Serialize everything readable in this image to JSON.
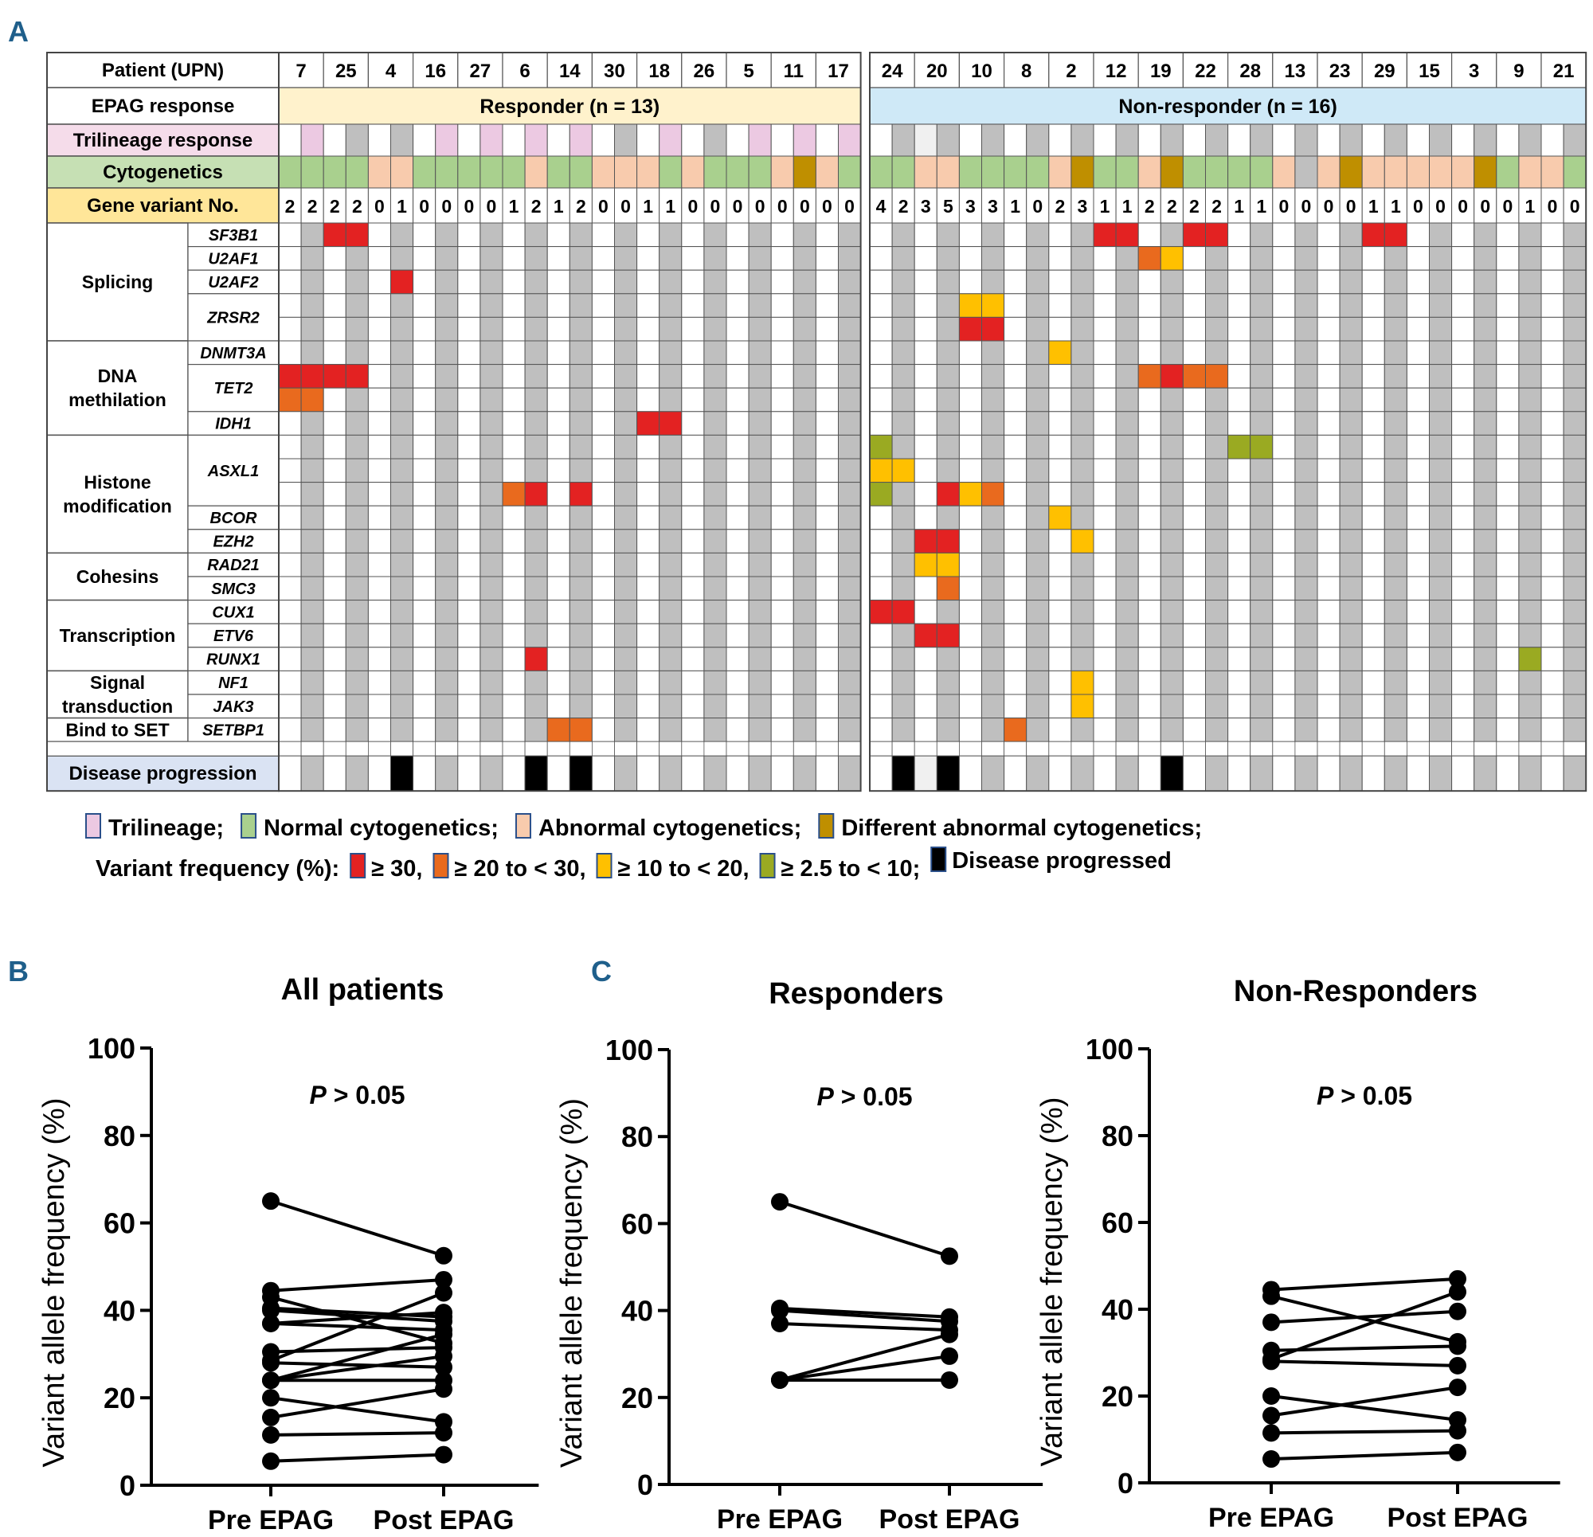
{
  "panels": {
    "a": "A",
    "b": "B",
    "c": "C"
  },
  "colors": {
    "white": "#ffffff",
    "post_gray": "#bfbfbf",
    "light_gray": "#f0f0f0",
    "trilineage": "#ecc9e2",
    "normal_cyto": "#a9d08e",
    "abnormal_cyto": "#f8cbad",
    "diff_abnormal_cyto": "#bf8f00",
    "vaf_ge30": "#e32222",
    "vaf_20_30": "#e96a1e",
    "vaf_10_20": "#ffc000",
    "vaf_2_5_10": "#9aaa22",
    "progressed": "#000000",
    "label_trilineage": "#f5dcea",
    "label_cyto": "#c6e0b4",
    "label_gene_no": "#ffe699",
    "label_disease": "#dae3f3",
    "responder_band": "#fff2cc",
    "nonresponder_band": "#cfe9f7",
    "panel_letter": "#1f5f8b"
  },
  "heatmap": {
    "row_labels": {
      "patient": "Patient (UPN)",
      "epag": "EPAG response",
      "trilineage": "Trilineage response",
      "cyto": "Cytogenetics",
      "gene_no": "Gene variant No.",
      "disease": "Disease progression"
    },
    "groups": [
      {
        "key": "responder",
        "label": "Responder (n = 13)",
        "patients": [
          "7",
          "25",
          "4",
          "16",
          "27",
          "6",
          "14",
          "30",
          "18",
          "26",
          "5",
          "11",
          "17"
        ],
        "trilineage": "WPWGWGWPWPWPWPWGWPWGWPWPWP",
        "cyto": "NNNNAANNNNNANNAAANANNNADAN",
        "gene_no": [
          2,
          2,
          2,
          2,
          0,
          1,
          0,
          0,
          0,
          0,
          1,
          2,
          1,
          2,
          0,
          0,
          1,
          1,
          0,
          0,
          0,
          0,
          0,
          0,
          0,
          0
        ],
        "progression": [
          5,
          11,
          13
        ],
        "progression_light": [],
        "mutations": {
          "SF3B1": [
            [
              2,
              "r"
            ],
            [
              3,
              "r"
            ]
          ],
          "U2AF2": [
            [
              5,
              "r"
            ]
          ],
          "TET2_1": [
            [
              0,
              "r"
            ],
            [
              1,
              "r"
            ],
            [
              2,
              "r"
            ],
            [
              3,
              "r"
            ]
          ],
          "TET2_2": [
            [
              0,
              "o"
            ],
            [
              1,
              "o"
            ]
          ],
          "IDH1": [
            [
              16,
              "r"
            ],
            [
              17,
              "r"
            ]
          ],
          "ASXL1_3": [
            [
              10,
              "o"
            ],
            [
              11,
              "r"
            ],
            [
              13,
              "r"
            ]
          ],
          "RUNX1": [
            [
              11,
              "r"
            ]
          ],
          "SETBP1": [
            [
              12,
              "o"
            ],
            [
              13,
              "o"
            ]
          ]
        }
      },
      {
        "key": "nonresponder",
        "label": "Non-responder (n = 16)",
        "patients": [
          "24",
          "20",
          "10",
          "8",
          "2",
          "12",
          "19",
          "22",
          "28",
          "13",
          "23",
          "29",
          "15",
          "3",
          "9",
          "21"
        ],
        "trilineage": "WGLGWGWGWGWGWGWGWGWGWGWGWGWGWGWG",
        "cyto": "NNAANNNNADNNADNNNNAXADAAAAADNAAN",
        "gene_no": [
          4,
          2,
          3,
          5,
          3,
          3,
          1,
          0,
          2,
          3,
          1,
          1,
          2,
          2,
          2,
          2,
          1,
          1,
          0,
          0,
          0,
          0,
          1,
          1,
          0,
          0,
          0,
          0,
          0,
          1,
          0,
          0
        ],
        "progression": [
          1,
          3,
          13
        ],
        "progression_light": [
          2
        ],
        "mutations": {
          "SF3B1": [
            [
              10,
              "r"
            ],
            [
              11,
              "r"
            ],
            [
              14,
              "r"
            ],
            [
              15,
              "r"
            ],
            [
              22,
              "r"
            ],
            [
              23,
              "r"
            ]
          ],
          "U2AF1": [
            [
              12,
              "o"
            ],
            [
              13,
              "y"
            ]
          ],
          "ZRSR2_1": [
            [
              4,
              "y"
            ],
            [
              5,
              "y"
            ]
          ],
          "ZRSR2_2": [
            [
              4,
              "r"
            ],
            [
              5,
              "r"
            ]
          ],
          "DNMT3A": [
            [
              8,
              "y"
            ]
          ],
          "TET2_1": [
            [
              12,
              "o"
            ],
            [
              13,
              "r"
            ],
            [
              14,
              "o"
            ],
            [
              15,
              "o"
            ]
          ],
          "ASXL1_1": [
            [
              0,
              "g"
            ],
            [
              16,
              "g"
            ],
            [
              17,
              "g"
            ]
          ],
          "ASXL1_2": [
            [
              0,
              "y"
            ],
            [
              1,
              "y"
            ]
          ],
          "ASXL1_3": [
            [
              0,
              "g"
            ],
            [
              3,
              "r"
            ],
            [
              4,
              "y"
            ],
            [
              5,
              "o"
            ]
          ],
          "BCOR": [
            [
              8,
              "y"
            ]
          ],
          "EZH2": [
            [
              2,
              "r"
            ],
            [
              3,
              "r"
            ],
            [
              9,
              "y"
            ]
          ],
          "RAD21": [
            [
              2,
              "y"
            ],
            [
              3,
              "y"
            ]
          ],
          "SMC3": [
            [
              3,
              "o"
            ]
          ],
          "CUX1": [
            [
              0,
              "r"
            ],
            [
              1,
              "r"
            ]
          ],
          "ETV6": [
            [
              2,
              "r"
            ],
            [
              3,
              "r"
            ]
          ],
          "RUNX1": [
            [
              29,
              "g"
            ]
          ],
          "NF1": [
            [
              9,
              "y"
            ]
          ],
          "JAK3": [
            [
              9,
              "y"
            ]
          ],
          "SETBP1": [
            [
              6,
              "o"
            ]
          ]
        }
      }
    ],
    "gene_rows": [
      "SF3B1",
      "U2AF1",
      "U2AF2",
      "ZRSR2_1",
      "ZRSR2_2",
      "DNMT3A",
      "TET2_1",
      "TET2_2",
      "IDH1",
      "ASXL1_1",
      "ASXL1_2",
      "ASXL1_3",
      "BCOR",
      "EZH2",
      "RAD21",
      "SMC3",
      "CUX1",
      "ETV6",
      "RUNX1",
      "NF1",
      "JAK3",
      "SETBP1"
    ],
    "gene_labels": [
      {
        "label": "SF3B1",
        "rows": [
          0
        ]
      },
      {
        "label": "U2AF1",
        "rows": [
          1
        ]
      },
      {
        "label": "U2AF2",
        "rows": [
          2
        ]
      },
      {
        "label": "ZRSR2",
        "rows": [
          3,
          4
        ]
      },
      {
        "label": "DNMT3A",
        "rows": [
          5
        ]
      },
      {
        "label": "TET2",
        "rows": [
          6,
          7
        ]
      },
      {
        "label": "IDH1",
        "rows": [
          8
        ]
      },
      {
        "label": "ASXL1",
        "rows": [
          9,
          10,
          11
        ]
      },
      {
        "label": "BCOR",
        "rows": [
          12
        ]
      },
      {
        "label": "EZH2",
        "rows": [
          13
        ]
      },
      {
        "label": "RAD21",
        "rows": [
          14
        ]
      },
      {
        "label": "SMC3",
        "rows": [
          15
        ]
      },
      {
        "label": "CUX1",
        "rows": [
          16
        ]
      },
      {
        "label": "ETV6",
        "rows": [
          17
        ]
      },
      {
        "label": "RUNX1",
        "rows": [
          18
        ]
      },
      {
        "label": "NF1",
        "rows": [
          19
        ]
      },
      {
        "label": "JAK3",
        "rows": [
          20
        ]
      },
      {
        "label": "SETBP1",
        "rows": [
          21
        ]
      }
    ],
    "categories": [
      {
        "lines": [
          "Splicing"
        ],
        "rows": [
          0,
          4
        ]
      },
      {
        "lines": [
          "DNA",
          "methilation"
        ],
        "rows": [
          5,
          8
        ]
      },
      {
        "lines": [
          "Histone",
          "modification"
        ],
        "rows": [
          9,
          13
        ]
      },
      {
        "lines": [
          "Cohesins"
        ],
        "rows": [
          14,
          15
        ]
      },
      {
        "lines": [
          "Transcription"
        ],
        "rows": [
          16,
          18
        ]
      },
      {
        "lines": [
          "Signal",
          "transduction"
        ],
        "rows": [
          19,
          20
        ]
      },
      {
        "lines": [
          "Bind to SET"
        ],
        "rows": [
          21,
          21
        ]
      }
    ]
  },
  "legend": {
    "row1": [
      {
        "swatch": "trilineage",
        "text": "Trilineage;"
      },
      {
        "swatch": "normal_cyto",
        "text": "Normal cytogenetics;"
      },
      {
        "swatch": "abnormal_cyto",
        "text": "Abnormal cytogenetics;"
      },
      {
        "swatch": "diff_abnormal_cyto",
        "text": "Different abnormal cytogenetics;"
      }
    ],
    "row2_prefix": "Variant frequency (%):",
    "row2": [
      {
        "swatch": "vaf_ge30",
        "text": "≥ 30,"
      },
      {
        "swatch": "vaf_20_30",
        "text": "≥ 20 to < 30,"
      },
      {
        "swatch": "vaf_10_20",
        "text": "≥ 10 to < 20,"
      },
      {
        "swatch": "vaf_2_5_10",
        "text": "≥ 2.5 to < 10;"
      },
      {
        "swatch": "progressed",
        "text": "Disease progressed"
      }
    ]
  },
  "chart_data": [
    {
      "type": "line",
      "panel": "B",
      "title": "All patients",
      "annotation": "P > 0.05",
      "xlabel": "",
      "ylabel": "Variant allele frequency (%)",
      "categories": [
        "Pre EPAG",
        "Post EPAG"
      ],
      "ylim": [
        0,
        100
      ],
      "yticks": [
        0,
        20,
        40,
        60,
        80,
        100
      ],
      "grid": false,
      "series": [
        {
          "name": "pair-1",
          "values": [
            65,
            52.5
          ]
        },
        {
          "name": "pair-2",
          "values": [
            40.5,
            38.5
          ]
        },
        {
          "name": "pair-3",
          "values": [
            40,
            37.5
          ]
        },
        {
          "name": "pair-4",
          "values": [
            37,
            35.5
          ]
        },
        {
          "name": "pair-5",
          "values": [
            24,
            34.5
          ]
        },
        {
          "name": "pair-6",
          "values": [
            24,
            29.5
          ]
        },
        {
          "name": "pair-7",
          "values": [
            24,
            24
          ]
        },
        {
          "name": "pair-8",
          "values": [
            44.5,
            47
          ]
        },
        {
          "name": "pair-9",
          "values": [
            43,
            32.5
          ]
        },
        {
          "name": "pair-10",
          "values": [
            37,
            39.5
          ]
        },
        {
          "name": "pair-11",
          "values": [
            30.5,
            31.5
          ]
        },
        {
          "name": "pair-12",
          "values": [
            28.5,
            44
          ]
        },
        {
          "name": "pair-13",
          "values": [
            28,
            27
          ]
        },
        {
          "name": "pair-14",
          "values": [
            20,
            14.5
          ]
        },
        {
          "name": "pair-15",
          "values": [
            15.5,
            22
          ]
        },
        {
          "name": "pair-16",
          "values": [
            11.5,
            12
          ]
        },
        {
          "name": "pair-17",
          "values": [
            5.5,
            7
          ]
        }
      ]
    },
    {
      "type": "line",
      "panel": "C",
      "title": "Responders",
      "annotation": "P > 0.05",
      "xlabel": "",
      "ylabel": "Variant allele frequency (%)",
      "categories": [
        "Pre EPAG",
        "Post EPAG"
      ],
      "ylim": [
        0,
        100
      ],
      "yticks": [
        0,
        20,
        40,
        60,
        80,
        100
      ],
      "grid": false,
      "series": [
        {
          "name": "pair-1",
          "values": [
            65,
            52.5
          ]
        },
        {
          "name": "pair-2",
          "values": [
            40.5,
            38.5
          ]
        },
        {
          "name": "pair-3",
          "values": [
            40,
            37.5
          ]
        },
        {
          "name": "pair-4",
          "values": [
            37,
            35.5
          ]
        },
        {
          "name": "pair-5",
          "values": [
            24,
            34.5
          ]
        },
        {
          "name": "pair-6",
          "values": [
            24,
            29.5
          ]
        },
        {
          "name": "pair-7",
          "values": [
            24,
            24
          ]
        }
      ]
    },
    {
      "type": "line",
      "panel": "C",
      "title": "Non-Responders",
      "annotation": "P > 0.05",
      "xlabel": "",
      "ylabel": "Variant allele frequency (%)",
      "categories": [
        "Pre EPAG",
        "Post EPAG"
      ],
      "ylim": [
        0,
        100
      ],
      "yticks": [
        0,
        20,
        40,
        60,
        80,
        100
      ],
      "grid": false,
      "series": [
        {
          "name": "pair-1",
          "values": [
            44.5,
            47
          ]
        },
        {
          "name": "pair-2",
          "values": [
            43,
            32.5
          ]
        },
        {
          "name": "pair-3",
          "values": [
            37,
            39.5
          ]
        },
        {
          "name": "pair-4",
          "values": [
            30.5,
            31.5
          ]
        },
        {
          "name": "pair-5",
          "values": [
            28.5,
            44
          ]
        },
        {
          "name": "pair-6",
          "values": [
            28,
            27
          ]
        },
        {
          "name": "pair-7",
          "values": [
            20,
            14.5
          ]
        },
        {
          "name": "pair-8",
          "values": [
            15.5,
            22
          ]
        },
        {
          "name": "pair-9",
          "values": [
            11.5,
            12
          ]
        },
        {
          "name": "pair-10",
          "values": [
            5.5,
            7
          ]
        }
      ]
    }
  ]
}
